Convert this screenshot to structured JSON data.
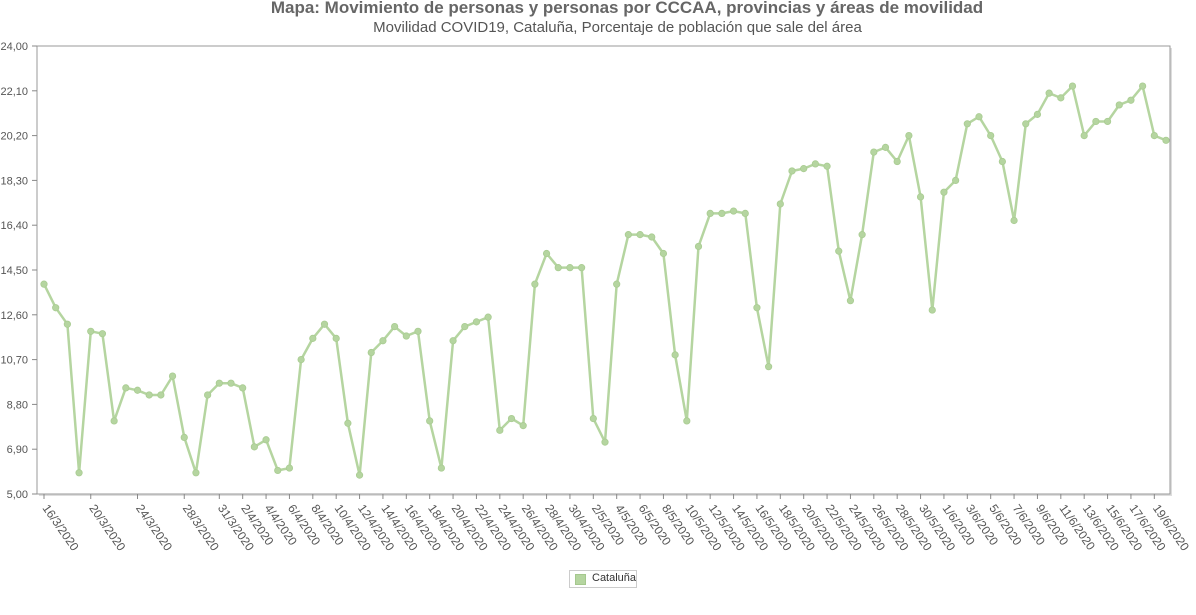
{
  "chart_data": {
    "type": "line",
    "title": "Mapa: Movimiento de personas y personas por CCCAA, provincias y áreas de movilidad",
    "subtitle": "Movilidad COVID19, Cataluña, Porcentaje de población que sale del área",
    "xlabel": "",
    "ylabel": "",
    "ylim": [
      5.0,
      24.0
    ],
    "yticks": [
      "5,00",
      "6,90",
      "8,80",
      "10,70",
      "12,60",
      "14,50",
      "16,40",
      "18,30",
      "20,20",
      "22,10",
      "24,00"
    ],
    "categories": [
      "16/3/2020",
      "17/3/2020",
      "18/3/2020",
      "19/3/2020",
      "20/3/2020",
      "21/3/2020",
      "22/3/2020",
      "23/3/2020",
      "24/3/2020",
      "25/3/2020",
      "26/3/2020",
      "27/3/2020",
      "28/3/2020",
      "29/3/2020",
      "30/3/2020",
      "31/3/2020",
      "1/4/2020",
      "2/4/2020",
      "3/4/2020",
      "4/4/2020",
      "5/4/2020",
      "6/4/2020",
      "7/4/2020",
      "8/4/2020",
      "9/4/2020",
      "10/4/2020",
      "11/4/2020",
      "12/4/2020",
      "13/4/2020",
      "14/4/2020",
      "15/4/2020",
      "16/4/2020",
      "17/4/2020",
      "18/4/2020",
      "19/4/2020",
      "20/4/2020",
      "21/4/2020",
      "22/4/2020",
      "23/4/2020",
      "24/4/2020",
      "25/4/2020",
      "26/4/2020",
      "27/4/2020",
      "28/4/2020",
      "29/4/2020",
      "30/4/2020",
      "1/5/2020",
      "2/5/2020",
      "3/5/2020",
      "4/5/2020",
      "5/5/2020",
      "6/5/2020",
      "7/5/2020",
      "8/5/2020",
      "9/5/2020",
      "10/5/2020",
      "11/5/2020",
      "12/5/2020",
      "13/5/2020",
      "14/5/2020",
      "15/5/2020",
      "16/5/2020",
      "17/5/2020",
      "18/5/2020",
      "19/5/2020",
      "20/5/2020",
      "21/5/2020",
      "22/5/2020",
      "23/5/2020",
      "24/5/2020",
      "25/5/2020",
      "26/5/2020",
      "27/5/2020",
      "28/5/2020",
      "29/5/2020",
      "30/5/2020",
      "31/5/2020",
      "1/6/2020",
      "2/6/2020",
      "3/6/2020",
      "4/6/2020",
      "5/6/2020",
      "6/6/2020",
      "7/6/2020",
      "8/6/2020",
      "9/6/2020",
      "10/6/2020",
      "11/6/2020",
      "12/6/2020",
      "13/6/2020",
      "14/6/2020",
      "15/6/2020",
      "16/6/2020",
      "17/6/2020",
      "18/6/2020",
      "19/6/2020",
      "20/6/2020"
    ],
    "xtick_labels": [
      "16/3/2020",
      "20/3/2020",
      "24/3/2020",
      "28/3/2020",
      "31/3/2020",
      "2/4/2020",
      "4/4/2020",
      "6/4/2020",
      "8/4/2020",
      "10/4/2020",
      "12/4/2020",
      "14/4/2020",
      "16/4/2020",
      "18/4/2020",
      "20/4/2020",
      "22/4/2020",
      "24/4/2020",
      "26/4/2020",
      "28/4/2020",
      "30/4/2020",
      "2/5/2020",
      "4/5/2020",
      "6/5/2020",
      "8/5/2020",
      "10/5/2020",
      "12/5/2020",
      "14/5/2020",
      "16/5/2020",
      "18/5/2020",
      "20/5/2020",
      "22/5/2020",
      "24/5/2020",
      "26/5/2020",
      "28/5/2020",
      "30/5/2020",
      "1/6/2020",
      "3/6/2020",
      "5/6/2020",
      "7/6/2020",
      "9/6/2020",
      "11/6/2020",
      "13/6/2020",
      "15/6/2020",
      "17/6/2020",
      "19/6/2020"
    ],
    "series": [
      {
        "name": "Cataluña",
        "color": "#b5d5a0",
        "values": [
          13.9,
          12.9,
          12.2,
          5.9,
          11.9,
          11.8,
          8.1,
          9.5,
          9.4,
          9.2,
          9.2,
          10.0,
          7.4,
          5.9,
          9.2,
          9.7,
          9.7,
          9.5,
          7.0,
          7.3,
          6.0,
          6.1,
          10.7,
          11.6,
          12.2,
          11.6,
          8.0,
          5.8,
          11.0,
          11.5,
          12.1,
          11.7,
          11.9,
          8.1,
          6.1,
          11.5,
          12.1,
          12.3,
          12.5,
          7.7,
          8.2,
          7.9,
          13.9,
          15.2,
          14.6,
          14.6,
          14.6,
          8.2,
          7.2,
          13.9,
          16.0,
          16.0,
          15.9,
          15.2,
          10.9,
          8.1,
          15.5,
          16.9,
          16.9,
          17.0,
          16.9,
          12.9,
          10.4,
          17.3,
          18.7,
          18.8,
          19.0,
          18.9,
          15.3,
          13.2,
          16.0,
          19.5,
          19.7,
          19.1,
          20.2,
          17.6,
          12.8,
          17.8,
          18.3,
          20.7,
          21.0,
          20.2,
          19.1,
          16.6,
          20.7,
          21.1,
          22.0,
          21.8,
          22.3,
          20.2,
          20.8,
          20.8,
          21.5,
          21.7,
          22.3,
          20.2,
          20.0
        ]
      }
    ],
    "legend": {
      "position": "bottom-center",
      "entries": [
        "Cataluña"
      ]
    }
  }
}
